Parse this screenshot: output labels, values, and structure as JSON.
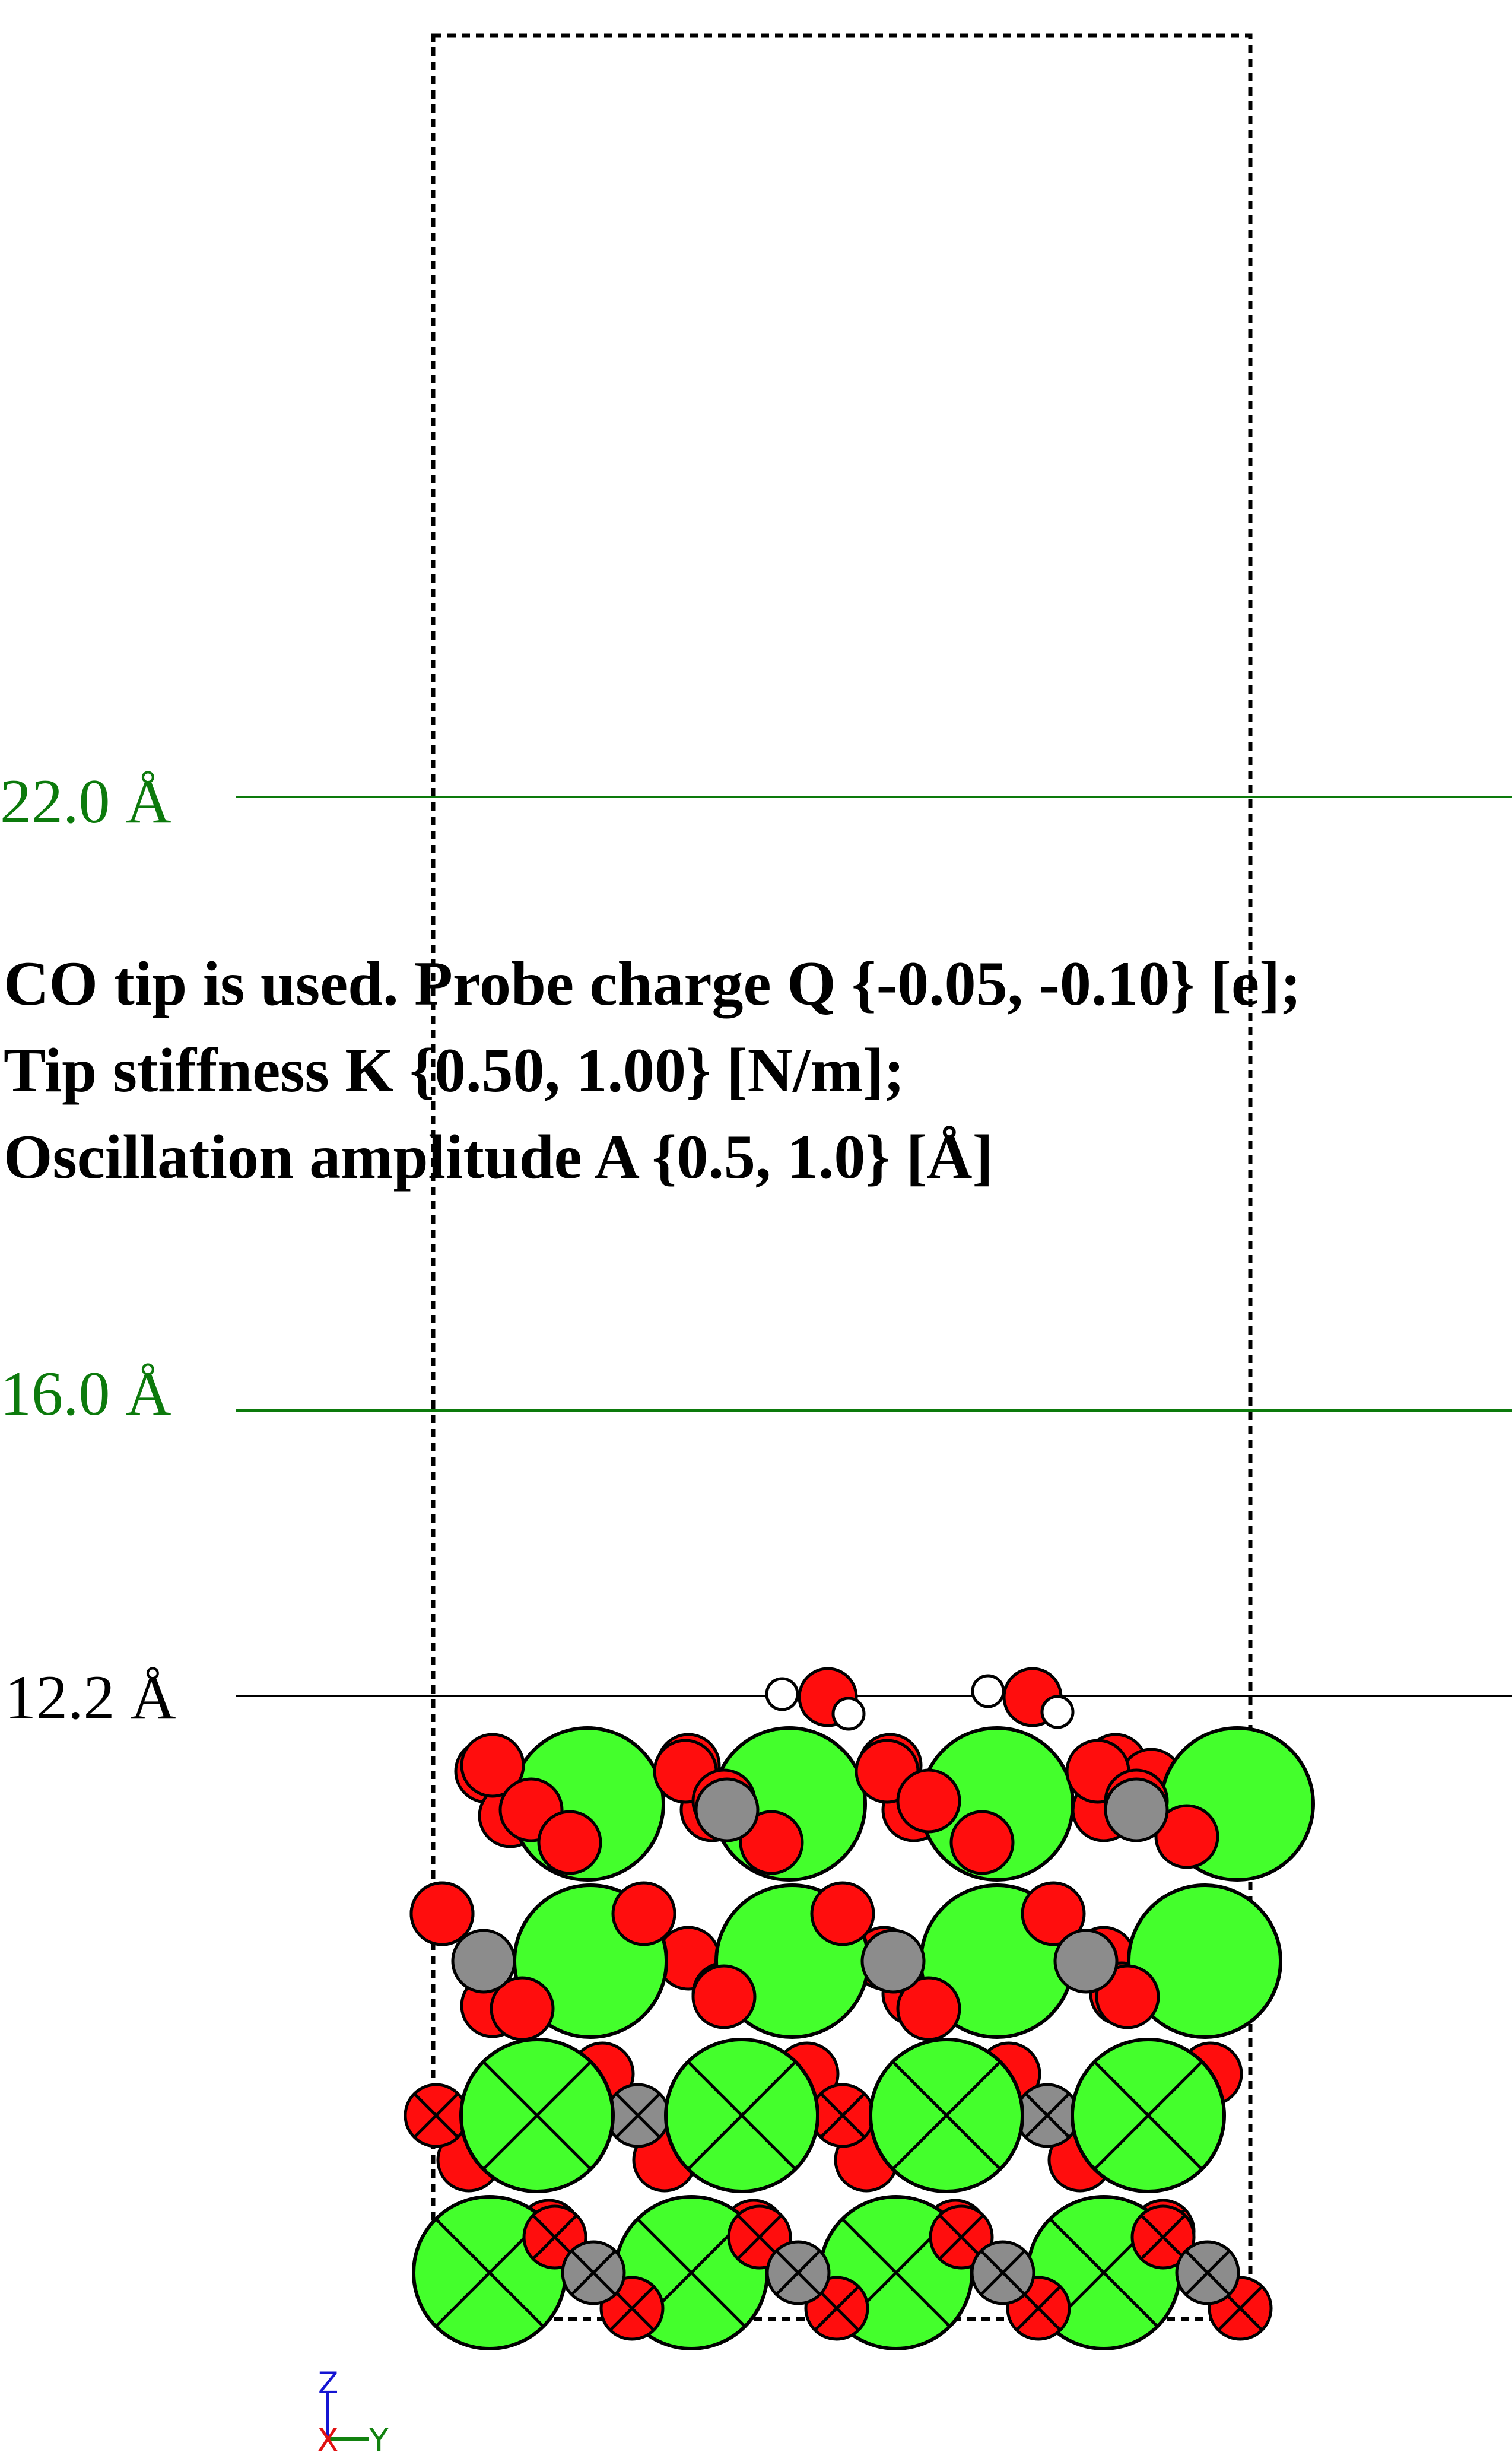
{
  "height_markers": [
    {
      "label": "22.0 Å",
      "color": "#0c7a0c"
    },
    {
      "label": "16.0 Å",
      "color": "#0c7a0c"
    },
    {
      "label": "12.2 Å",
      "color": "#000000"
    }
  ],
  "parameters": {
    "line1": "CO tip is used. Probe charge Q {-0.05, -0.10} [e];",
    "line2": "Tip stiffness K {0.50, 1.00} [N/m];",
    "line3": "Oscillation amplitude A {0.5, 1.0} [Å]"
  },
  "axes": {
    "z": "Z",
    "x": "X",
    "y": "Y"
  },
  "colors": {
    "calcium": "#44ff2c",
    "oxygen": "#ff0d0d",
    "carbon": "#8c8c8c",
    "hydrogen": "#ffffff",
    "marker_green": "#0c7a0c"
  }
}
